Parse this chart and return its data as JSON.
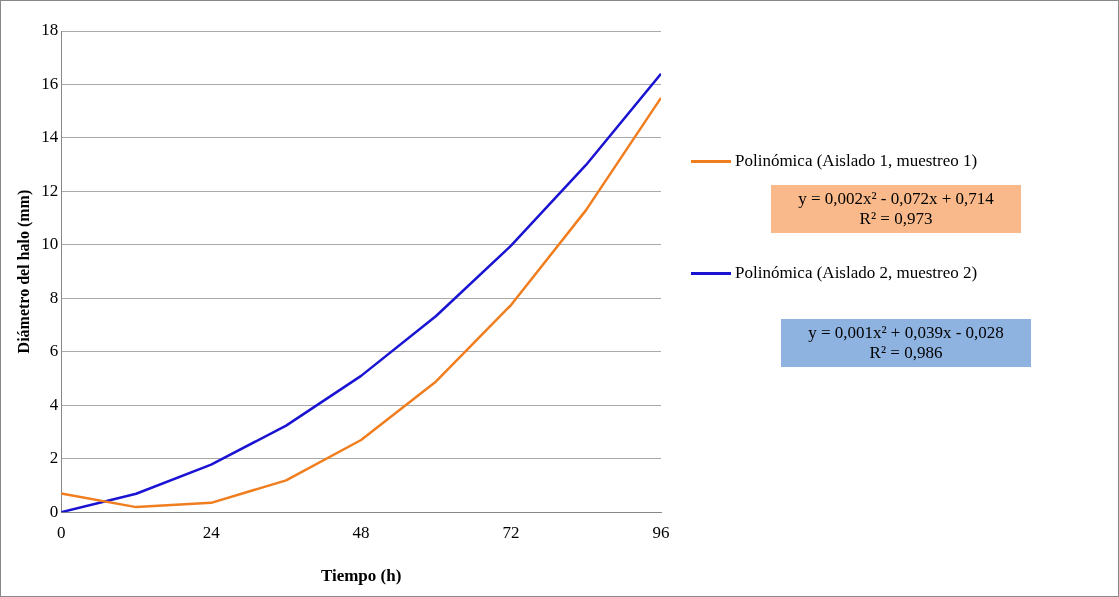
{
  "chart_data": {
    "type": "line",
    "xlabel": "Tiempo (h)",
    "ylabel": "Diámetro del halo (mm)",
    "x": [
      0,
      12,
      24,
      36,
      48,
      60,
      72,
      84,
      96
    ],
    "xlim": [
      0,
      96
    ],
    "xticks": [
      0,
      24,
      48,
      72,
      96
    ],
    "ylim": [
      0,
      18
    ],
    "yticks": [
      0,
      2,
      4,
      6,
      8,
      10,
      12,
      14,
      16,
      18
    ],
    "grid": "y",
    "legend": "right",
    "marker": "none",
    "line_style": "solid",
    "series": [
      {
        "name": "Polinómica (Aislado 1, muestreo 1)",
        "color": "#f07d1e",
        "values": [
          0.7,
          0.19,
          0.35,
          1.19,
          2.7,
          4.89,
          7.75,
          11.3,
          15.5
        ]
      },
      {
        "name": "Polinómica (Aislado 2, muestreo 2)",
        "color": "#1a14d2",
        "values": [
          0,
          0.69,
          1.78,
          3.24,
          5.1,
          7.34,
          9.97,
          12.99,
          16.4
        ]
      }
    ],
    "annotations": [
      "y = 0,002x² - 0,072x + 0,714\nR² = 0,973",
      "y = 0,001x² + 0,039x - 0,028\nR² = 0,986"
    ]
  }
}
